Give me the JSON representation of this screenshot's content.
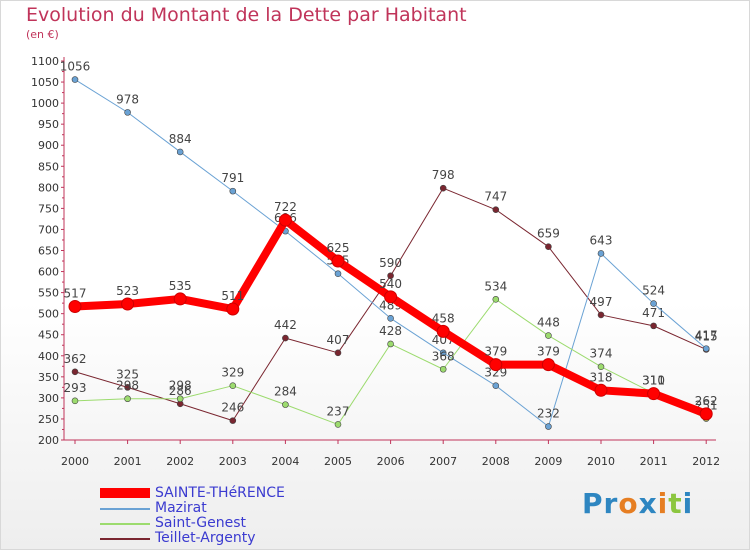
{
  "header": {
    "title": "Evolution du Montant de la Dette par Habitant",
    "unit": "(en €)"
  },
  "brand": {
    "text": "Proxiti",
    "letters": [
      "P",
      "r",
      "o",
      "x",
      "i",
      "t",
      "i"
    ],
    "colors": [
      "#2e86c1",
      "#2e86c1",
      "#e67e22",
      "#2e86c1",
      "#e67e22",
      "#8cc63f",
      "#2e86c1"
    ]
  },
  "chart_data": {
    "type": "line",
    "title": "Evolution du Montant de la Dette par Habitant",
    "ylabel": "(en €)",
    "xlabel": "",
    "x": [
      "2000",
      "2001",
      "2002",
      "2003",
      "2004",
      "2005",
      "2006",
      "2007",
      "2008",
      "2009",
      "2010",
      "2011",
      "2012"
    ],
    "ylim": [
      200,
      1100
    ],
    "yticks": [
      200,
      250,
      300,
      350,
      400,
      450,
      500,
      550,
      600,
      650,
      700,
      750,
      800,
      850,
      900,
      950,
      1000,
      1050,
      1100
    ],
    "grid": false,
    "legend_position": "bottom-left",
    "series": [
      {
        "name": "SAINTE-THéRENCE",
        "color": "#ff0000",
        "width": 8,
        "values": [
          517,
          523,
          535,
          511,
          722,
          625,
          540,
          458,
          379,
          379,
          318,
          310,
          262
        ]
      },
      {
        "name": "Mazirat",
        "color": "#6aa2d4",
        "width": 1,
        "values": [
          1056,
          978,
          884,
          791,
          696,
          595,
          489,
          407,
          329,
          232,
          643,
          524,
          417
        ]
      },
      {
        "name": "Saint-Genest",
        "color": "#9cdb6e",
        "width": 1,
        "values": [
          293,
          298,
          298,
          329,
          284,
          237,
          428,
          368,
          534,
          448,
          374,
          311,
          251
        ]
      },
      {
        "name": "Teillet-Argenty",
        "color": "#7a2630",
        "width": 1,
        "values": [
          362,
          325,
          286,
          246,
          442,
          407,
          590,
          798,
          747,
          659,
          497,
          471,
          415
        ]
      }
    ]
  }
}
